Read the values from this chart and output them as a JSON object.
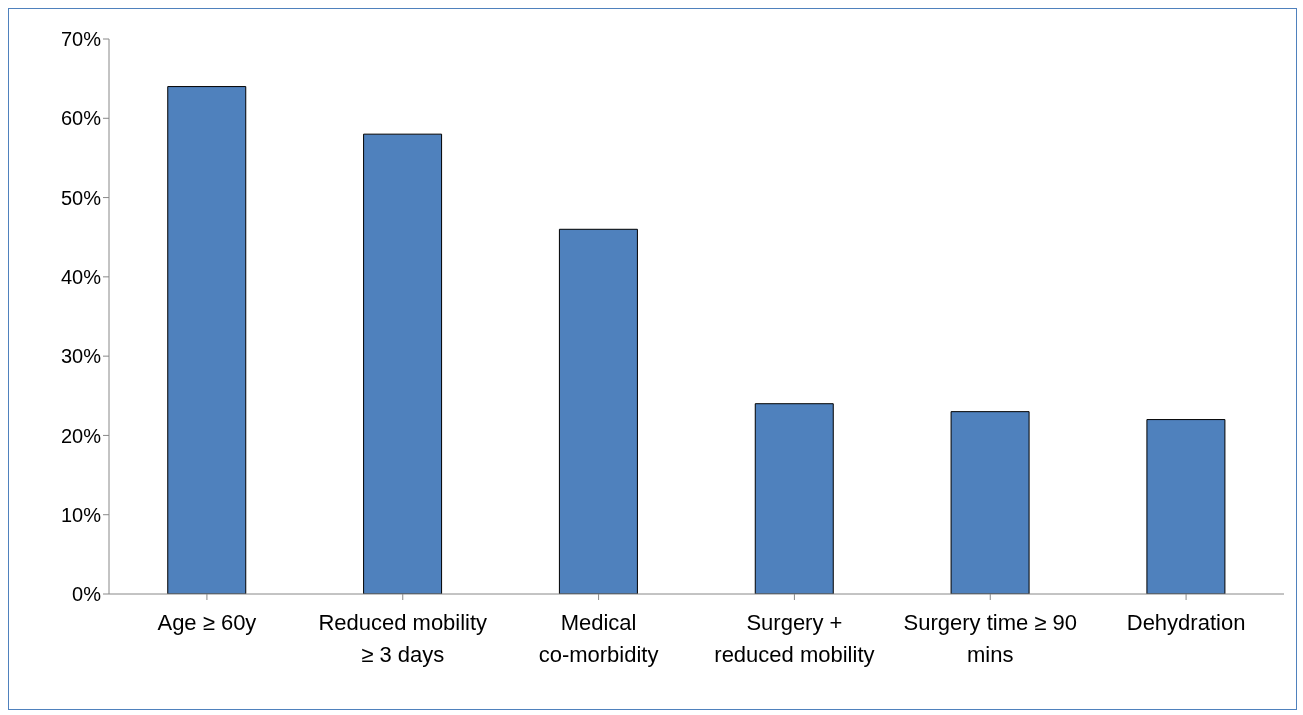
{
  "chart_data": {
    "type": "bar",
    "categories": [
      "Age ≥ 60y",
      "Reduced mobility ≥ 3 days",
      "Medical co-morbidity",
      "Surgery + reduced mobility",
      "Surgery time ≥ 90 mins",
      "Dehydration"
    ],
    "values": [
      64,
      58,
      46,
      24,
      23,
      22
    ],
    "color": "#4f81bd",
    "ylim": [
      0,
      70
    ],
    "yticks": [
      {
        "value": 0,
        "label": "0%"
      },
      {
        "value": 10,
        "label": "10%"
      },
      {
        "value": 20,
        "label": "20%"
      },
      {
        "value": 30,
        "label": "30%"
      },
      {
        "value": 40,
        "label": "40%"
      },
      {
        "value": 50,
        "label": "50%"
      },
      {
        "value": 60,
        "label": "60%"
      },
      {
        "value": 70,
        "label": "70%"
      }
    ],
    "grid": false,
    "legend": false
  }
}
